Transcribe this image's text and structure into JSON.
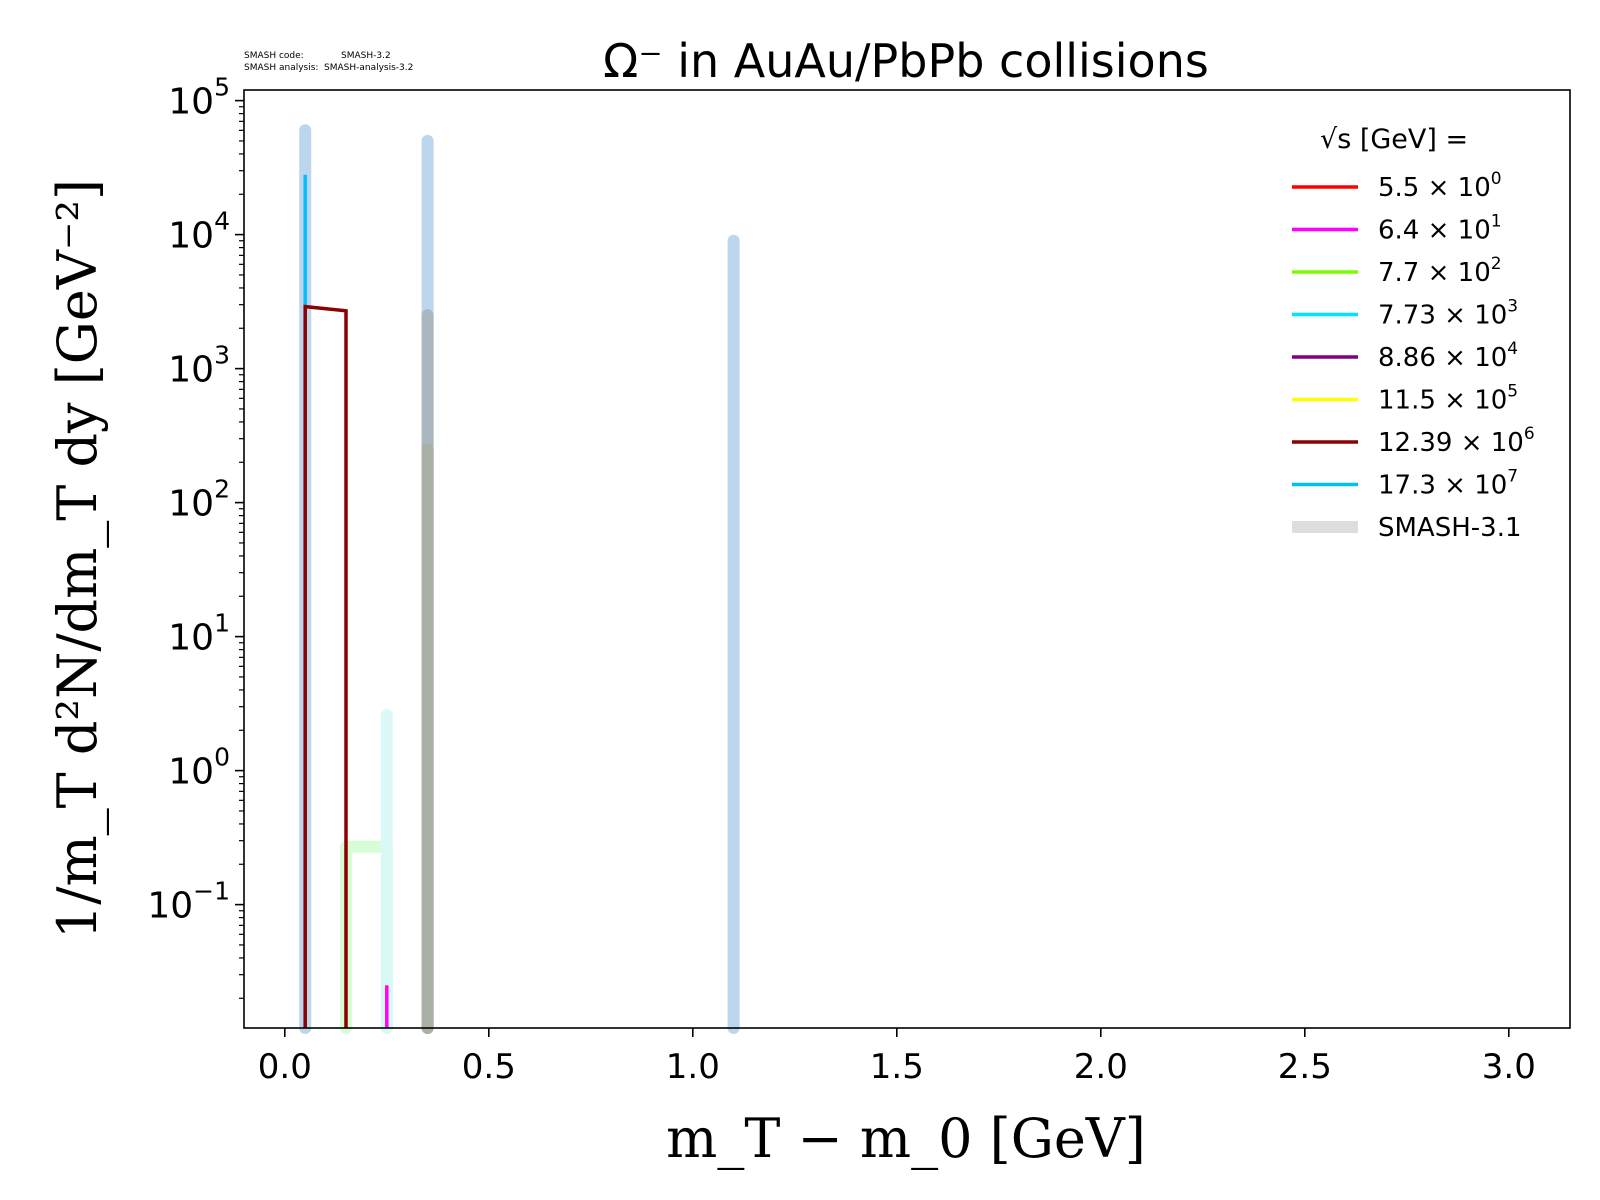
{
  "version_label": {
    "code_label": "SMASH code:",
    "code_value": "SMASH-3.2",
    "analysis_label": "SMASH analysis:",
    "analysis_value": "SMASH-analysis-3.2"
  },
  "chart_data": {
    "type": "line",
    "title": "Ω⁻ in AuAu/PbPb collisions",
    "xlabel": "m_T − m_0 [GeV]",
    "ylabel": "1/m_T d²N/dm_T dy [GeV⁻²]",
    "xlim": [
      -0.1,
      3.15
    ],
    "ylim": [
      0.012,
      120000
    ],
    "yscale": "log",
    "grid": false,
    "x_ticks": [
      "0.0",
      "0.5",
      "1.0",
      "1.5",
      "2.0",
      "2.5",
      "3.0"
    ],
    "y_ticks": [
      {
        "base": "10",
        "exp": "−1"
      },
      {
        "base": "10",
        "exp": "0"
      },
      {
        "base": "10",
        "exp": "1"
      },
      {
        "base": "10",
        "exp": "2"
      },
      {
        "base": "10",
        "exp": "3"
      },
      {
        "base": "10",
        "exp": "4"
      },
      {
        "base": "10",
        "exp": "5"
      }
    ],
    "legend": {
      "placement": "top-right",
      "title": "√s [GeV] =",
      "entries": [
        {
          "mant": "5.5",
          "exp": "0",
          "color": "#ff0000"
        },
        {
          "mant": "6.4",
          "exp": "1",
          "color": "#ff00ff"
        },
        {
          "mant": "7.7",
          "exp": "2",
          "color": "#7cfc00"
        },
        {
          "mant": "7.73",
          "exp": "3",
          "color": "#00e5ff"
        },
        {
          "mant": "8.86",
          "exp": "4",
          "color": "#800080"
        },
        {
          "mant": "11.5",
          "exp": "5",
          "color": "#ffff00"
        },
        {
          "mant": "12.39",
          "exp": "6",
          "color": "#8b0000"
        },
        {
          "mant": "17.3",
          "exp": "7",
          "color": "#00bfff"
        },
        {
          "mant": "SMASH-3.1",
          "exp": "",
          "color": "#dddddd",
          "reference": true
        }
      ]
    },
    "reference_series": [
      {
        "color": "#b8d4ec",
        "opacity": 0.95,
        "points": [
          [
            0.05,
            0.012
          ],
          [
            0.05,
            60000
          ],
          [
            0.05,
            0.012
          ]
        ]
      },
      {
        "color": "#b8d4ec",
        "opacity": 0.95,
        "points": [
          [
            0.35,
            0.012
          ],
          [
            0.35,
            50000
          ],
          [
            0.35,
            0.012
          ]
        ]
      },
      {
        "color": "#b8d4ec",
        "opacity": 0.95,
        "points": [
          [
            1.1,
            0.012
          ],
          [
            1.1,
            9000
          ],
          [
            1.1,
            0.012
          ]
        ]
      },
      {
        "color": "#a8b4b8",
        "opacity": 0.9,
        "points": [
          [
            0.35,
            0.012
          ],
          [
            0.35,
            2500
          ],
          [
            0.35,
            0.012
          ]
        ]
      },
      {
        "color": "#a8b0a0",
        "opacity": 0.85,
        "points": [
          [
            0.35,
            0.012
          ],
          [
            0.35,
            250
          ],
          [
            0.35,
            0.012
          ]
        ]
      },
      {
        "color": "#ccfccc",
        "opacity": 0.8,
        "points": [
          [
            0.15,
            0.012
          ],
          [
            0.15,
            0.27
          ],
          [
            0.25,
            0.27
          ],
          [
            0.25,
            0.012
          ]
        ]
      },
      {
        "color": "#d8f8f8",
        "opacity": 0.9,
        "points": [
          [
            0.25,
            0.012
          ],
          [
            0.25,
            2.6
          ],
          [
            0.25,
            0.012
          ]
        ]
      }
    ],
    "series": [
      {
        "color": "#ff00ff",
        "points": [
          [
            0.25,
            0.012
          ],
          [
            0.25,
            0.025
          ]
        ]
      },
      {
        "color": "#00bfff",
        "points": [
          [
            0.05,
            0.012
          ],
          [
            0.05,
            28000
          ],
          [
            0.05,
            0.012
          ]
        ]
      },
      {
        "color": "#8b0000",
        "points": [
          [
            0.05,
            0.012
          ],
          [
            0.05,
            2900
          ],
          [
            0.15,
            2700
          ],
          [
            0.15,
            0.012
          ]
        ]
      }
    ]
  }
}
